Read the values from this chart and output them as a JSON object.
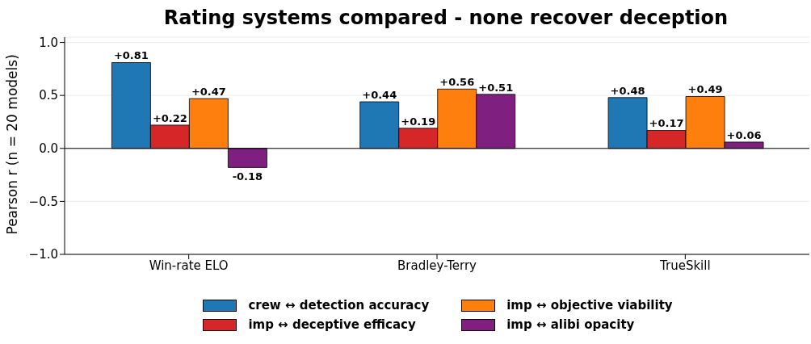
{
  "chart_data": {
    "type": "bar",
    "title": "Rating systems compared - none recover deception",
    "ylabel": "Pearson r  (n = 20 models)",
    "categories": [
      "Win-rate ELO",
      "Bradley-Terry",
      "TrueSkill"
    ],
    "series": [
      {
        "name": "crew ↔ detection accuracy",
        "color": "#1f77b4",
        "values": [
          0.81,
          0.44,
          0.48
        ],
        "value_labels": [
          "+0.81",
          "+0.44",
          "+0.48"
        ]
      },
      {
        "name": "imp ↔ deceptive efficacy",
        "color": "#d62728",
        "values": [
          0.22,
          0.19,
          0.17
        ],
        "value_labels": [
          "+0.22",
          "+0.19",
          "+0.17"
        ]
      },
      {
        "name": "imp ↔ objective viability",
        "color": "#ff7f0e",
        "values": [
          0.47,
          0.56,
          0.49
        ],
        "value_labels": [
          "+0.47",
          "+0.56",
          "+0.49"
        ]
      },
      {
        "name": "imp ↔ alibi opacity",
        "color": "#7f1f7f",
        "values": [
          -0.18,
          0.51,
          0.06
        ],
        "value_labels": [
          "-0.18",
          "+0.51",
          "+0.06"
        ]
      }
    ],
    "ylim": [
      -1,
      1.05
    ],
    "yticks": [
      {
        "value": -1,
        "label": "−1.0"
      },
      {
        "value": -0.5,
        "label": "−0.5"
      },
      {
        "value": 0,
        "label": "0.0"
      },
      {
        "value": 0.5,
        "label": "0.5"
      },
      {
        "value": 1,
        "label": "1.0"
      }
    ],
    "ref_lines": [
      {
        "axis": "y",
        "value": 0,
        "color": "#000000"
      }
    ],
    "grid": "y",
    "legend": "bottom"
  }
}
